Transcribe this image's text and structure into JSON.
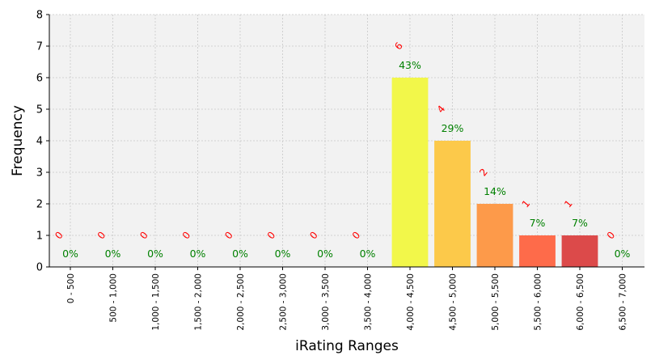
{
  "chart_data": {
    "type": "bar",
    "xlabel": "iRating Ranges",
    "ylabel": "Frequency",
    "ylim": [
      0,
      8
    ],
    "yticks": [
      "0",
      "1",
      "2",
      "3",
      "4",
      "5",
      "6",
      "7",
      "8"
    ],
    "grid": true,
    "categories": [
      "0 - 500",
      "500 - 1,000",
      "1,000 - 1,500",
      "1,500 - 2,000",
      "2,000 - 2,500",
      "2,500 - 3,000",
      "3,000 - 3,500",
      "3,500 - 4,000",
      "4,000 - 4,500",
      "4,500 - 5,000",
      "5,000 - 5,500",
      "5,500 - 6,000",
      "6,000 - 6,500",
      "6,500 - 7,000"
    ],
    "values": [
      0,
      0,
      0,
      0,
      0,
      0,
      0,
      0,
      6,
      4,
      2,
      1,
      1,
      0
    ],
    "count_labels": [
      "0",
      "0",
      "0",
      "0",
      "0",
      "0",
      "0",
      "0",
      "6",
      "4",
      "2",
      "1",
      "1",
      "0"
    ],
    "percent_labels": [
      "0%",
      "0%",
      "0%",
      "0%",
      "0%",
      "0%",
      "0%",
      "0%",
      "43%",
      "29%",
      "14%",
      "7%",
      "7%",
      "0%"
    ],
    "colors": [
      "#f2f24a",
      "#f2f24a",
      "#f2f24a",
      "#f2f24a",
      "#f2f24a",
      "#f2f24a",
      "#f2f24a",
      "#f2f24a",
      "#f2f74a",
      "#fcc94a",
      "#fd9a4a",
      "#fe6b4a",
      "#dc4a4a",
      "#dc4a4a"
    ],
    "count_label_color": "#ff0000",
    "percent_label_color": "#008000",
    "plot_background": "#f2f2f2"
  }
}
